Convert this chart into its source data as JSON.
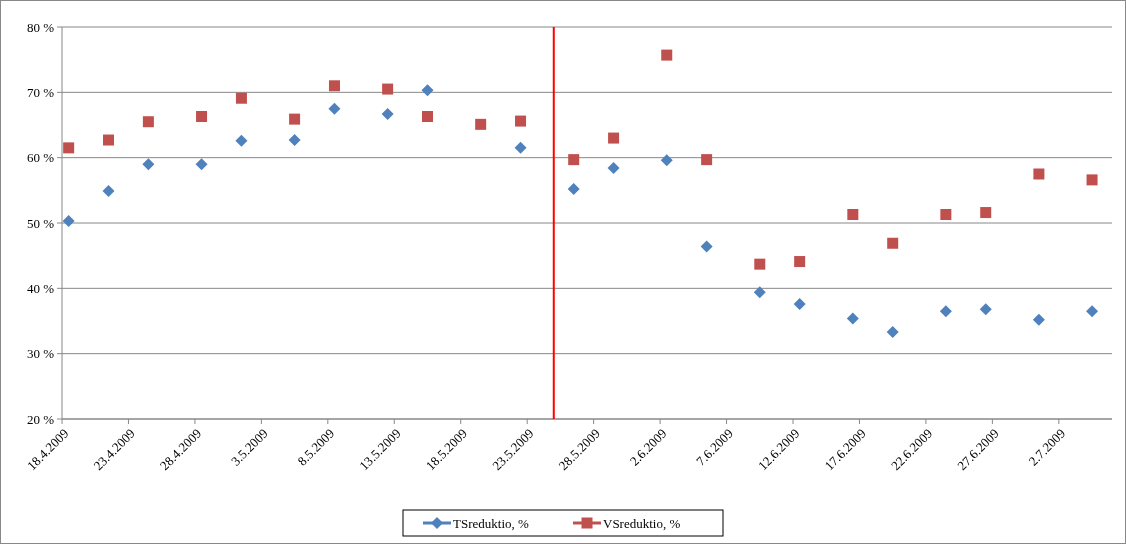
{
  "chart_data": {
    "type": "scatter",
    "x": [
      "2009-04-18T12:00",
      "2009-04-21T12:00",
      "2009-04-24T12:00",
      "2009-04-28T12:00",
      "2009-05-01T12:00",
      "2009-05-05T12:00",
      "2009-05-08T12:00",
      "2009-05-12T12:00",
      "2009-05-15T12:00",
      "2009-05-19T12:00",
      "2009-05-22T12:00",
      "2009-05-26T12:00",
      "2009-05-29T12:00",
      "2009-06-02T12:00",
      "2009-06-05T12:00",
      "2009-06-09T12:00",
      "2009-06-12T12:00",
      "2009-06-16T12:00",
      "2009-06-19T12:00",
      "2009-06-23T12:00",
      "2009-06-26T12:00",
      "2009-06-30T12:00",
      "2009-07-04T12:00"
    ],
    "series": [
      {
        "name": "TSreduktio, %",
        "color": "#4f81bd",
        "marker": "diamond",
        "values": [
          50.3,
          54.9,
          59.0,
          59.0,
          62.6,
          62.7,
          67.5,
          66.7,
          70.3,
          null,
          61.5,
          55.2,
          58.4,
          59.6,
          46.4,
          39.4,
          37.6,
          35.4,
          33.3,
          36.5,
          36.8,
          35.2,
          36.5
        ]
      },
      {
        "name": "VSreduktio, %",
        "color": "#c0504d",
        "marker": "square",
        "values": [
          61.5,
          62.7,
          65.5,
          66.3,
          69.1,
          65.9,
          71.0,
          70.5,
          66.3,
          65.1,
          65.6,
          59.7,
          63.0,
          75.7,
          59.7,
          43.7,
          44.1,
          51.3,
          46.9,
          51.3,
          51.6,
          57.5,
          56.6
        ]
      }
    ],
    "xlim": [
      "2009-04-18",
      "2009-07-06"
    ],
    "xticks": [
      {
        "value": "2009-04-18",
        "label": "18.4.2009"
      },
      {
        "value": "2009-04-23",
        "label": "23.4.2009"
      },
      {
        "value": "2009-04-28",
        "label": "28.4.2009"
      },
      {
        "value": "2009-05-03",
        "label": "3.5.2009"
      },
      {
        "value": "2009-05-08",
        "label": "8.5.2009"
      },
      {
        "value": "2009-05-13",
        "label": "13.5.2009"
      },
      {
        "value": "2009-05-18",
        "label": "18.5.2009"
      },
      {
        "value": "2009-05-23",
        "label": "23.5.2009"
      },
      {
        "value": "2009-05-28",
        "label": "28.5.2009"
      },
      {
        "value": "2009-06-02",
        "label": "2.6.2009"
      },
      {
        "value": "2009-06-07",
        "label": "7.6.2009"
      },
      {
        "value": "2009-06-12",
        "label": "12.6.2009"
      },
      {
        "value": "2009-06-17",
        "label": "17.6.2009"
      },
      {
        "value": "2009-06-22",
        "label": "22.6.2009"
      },
      {
        "value": "2009-06-27",
        "label": "27.6.2009"
      },
      {
        "value": "2009-07-02",
        "label": "2.7.2009"
      }
    ],
    "ylim": [
      20,
      80
    ],
    "yticks": [
      {
        "value": 20,
        "label": "20 %"
      },
      {
        "value": 30,
        "label": "30 %"
      },
      {
        "value": 40,
        "label": "40 %"
      },
      {
        "value": 50,
        "label": "50 %"
      },
      {
        "value": 60,
        "label": "60 %"
      },
      {
        "value": 70,
        "label": "70 %"
      },
      {
        "value": 80,
        "label": "80 %"
      }
    ],
    "grid": "y",
    "legend": "bottom",
    "ref_lines": [
      {
        "axis": "x",
        "value": "2009-05-25",
        "color": "#ff0000"
      }
    ]
  }
}
